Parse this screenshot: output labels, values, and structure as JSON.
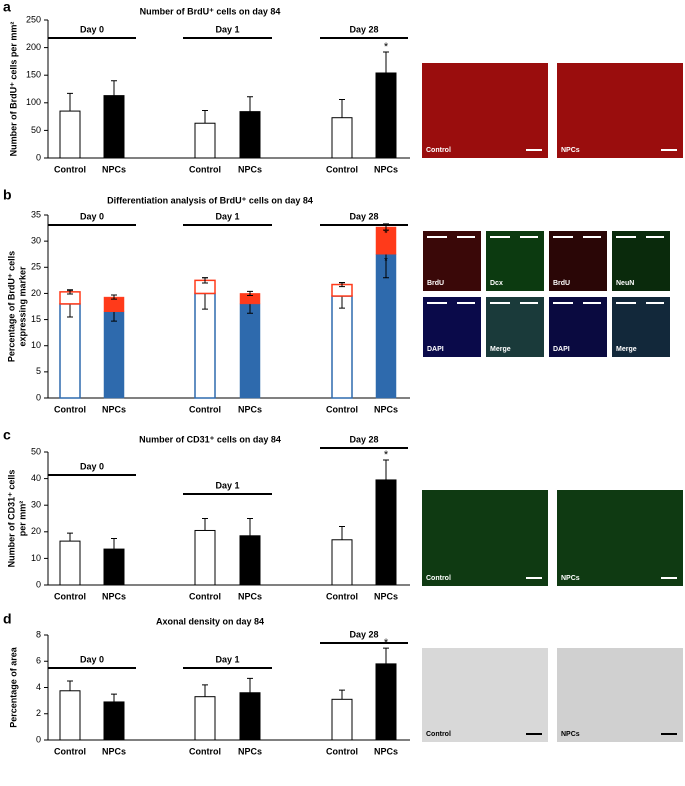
{
  "chart_data": [
    {
      "panel": "a",
      "type": "bar",
      "title": "Number of BrdU⁺ cells on day 84",
      "ylabel": [
        "Number of BrdU⁺ cells per mm²"
      ],
      "categories": [
        "Control",
        "NPCs",
        "Control",
        "NPCs",
        "Control",
        "NPCs"
      ],
      "groups": [
        "Day 0",
        "Day 1",
        "Day 28"
      ],
      "values": [
        85,
        113,
        63,
        84,
        73,
        154
      ],
      "errors": [
        32,
        27,
        23,
        27,
        33,
        38
      ],
      "bar_colors": [
        "#ffffff",
        "#000000",
        "#ffffff",
        "#000000",
        "#ffffff",
        "#000000"
      ],
      "significance": [
        null,
        null,
        null,
        null,
        null,
        "*"
      ],
      "ylim": [
        0,
        250
      ],
      "yticks": [
        0,
        50,
        100,
        150,
        200,
        250
      ],
      "image_labels": [
        "Control",
        "NPCs"
      ]
    },
    {
      "panel": "b",
      "type": "stacked_bar",
      "title": "Differentiation analysis of BrdU⁺ cells on day 84",
      "ylabel": [
        "Percentage of BrdU⁺ cells",
        "expressing marker"
      ],
      "categories": [
        "Control",
        "NPCs",
        "Control",
        "NPCs",
        "Control",
        "NPCs"
      ],
      "groups": [
        "Day 0",
        "Day 1",
        "Day 28"
      ],
      "hollow": [
        true,
        false,
        true,
        false,
        true,
        false
      ],
      "series": [
        {
          "color": "#2e6aad",
          "values": [
            18,
            16.5,
            20,
            18,
            19.5,
            27.5
          ],
          "errors": [
            2.5,
            1.8,
            3,
            1.8,
            2.3,
            4.5
          ],
          "significance": [
            null,
            null,
            null,
            null,
            null,
            "*"
          ]
        },
        {
          "color": "#ff3a1a",
          "values": [
            2.3,
            2.8,
            2.5,
            2,
            2.2,
            5.2
          ],
          "errors": [
            0.4,
            0.4,
            0.5,
            0.4,
            0.4,
            0.6
          ],
          "significance": [
            null,
            null,
            null,
            null,
            null,
            "*"
          ]
        }
      ],
      "ylim": [
        0,
        35
      ],
      "yticks": [
        0,
        5,
        10,
        15,
        20,
        25,
        30,
        35
      ],
      "image_labels": [
        "BrdU",
        "Dcx",
        "BrdU",
        "NeuN",
        "DAPI",
        "Merge",
        "DAPI",
        "Merge"
      ]
    },
    {
      "panel": "c",
      "type": "bar",
      "title": "Number of CD31⁺ cells on day 84",
      "ylabel": [
        "Number of CD31⁺ cells",
        "per mm²"
      ],
      "categories": [
        "Control",
        "NPCs",
        "Control",
        "NPCs",
        "Control",
        "NPCs"
      ],
      "groups": [
        "Day 0",
        "Day 1",
        "Day 28"
      ],
      "values": [
        16.5,
        13.5,
        20.5,
        18.5,
        17,
        39.5
      ],
      "errors": [
        3,
        4,
        4.5,
        6.5,
        5,
        7.5
      ],
      "bar_colors": [
        "#ffffff",
        "#000000",
        "#ffffff",
        "#000000",
        "#ffffff",
        "#000000"
      ],
      "significance": [
        null,
        null,
        null,
        null,
        null,
        "*"
      ],
      "ylim": [
        0,
        50
      ],
      "yticks": [
        0,
        10,
        20,
        30,
        40,
        50
      ],
      "image_labels": [
        "Control",
        "NPCs"
      ]
    },
    {
      "panel": "d",
      "type": "bar",
      "title": "Axonal density on day 84",
      "ylabel": [
        "Percentage of area"
      ],
      "categories": [
        "Control",
        "NPCs",
        "Control",
        "NPCs",
        "Control",
        "NPCs"
      ],
      "groups": [
        "Day 0",
        "Day 1",
        "Day 28"
      ],
      "values": [
        3.75,
        2.9,
        3.3,
        3.6,
        3.1,
        5.8
      ],
      "errors": [
        0.75,
        0.6,
        0.9,
        1.1,
        0.7,
        1.2
      ],
      "bar_colors": [
        "#ffffff",
        "#000000",
        "#ffffff",
        "#000000",
        "#ffffff",
        "#000000"
      ],
      "significance": [
        null,
        null,
        null,
        null,
        null,
        "*"
      ],
      "ylim": [
        0,
        8
      ],
      "yticks": [
        0,
        2,
        4,
        6,
        8
      ],
      "image_labels": [
        "Control",
        "NPCs"
      ]
    }
  ]
}
